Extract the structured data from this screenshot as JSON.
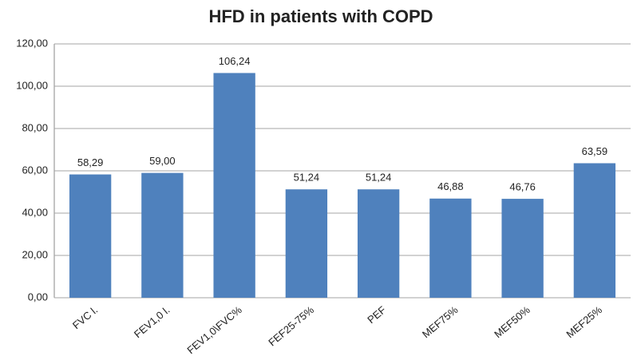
{
  "chart_data": {
    "type": "bar",
    "title": "HFD in patients with COPD",
    "categories": [
      "FVC l.",
      "FEV1,0 l.",
      "FEV1,0\\FVC%",
      "FEF25-75%",
      "PEF",
      "MEF75%",
      "MEF50%",
      "MEF25%"
    ],
    "values": [
      58.29,
      59.0,
      106.24,
      51.24,
      51.24,
      46.88,
      46.76,
      63.59
    ],
    "value_labels": [
      "58,29",
      "59,00",
      "106,24",
      "51,24",
      "51,24",
      "46,88",
      "46,76",
      "63,59"
    ],
    "color": "#4f81bd",
    "ylim": [
      0,
      120
    ],
    "yticks": [
      {
        "value": 0,
        "label": "0,00"
      },
      {
        "value": 20,
        "label": "20,00"
      },
      {
        "value": 40,
        "label": "40,00"
      },
      {
        "value": 60,
        "label": "60,00"
      },
      {
        "value": 80,
        "label": "80,00"
      },
      {
        "value": 100,
        "label": "100,00"
      },
      {
        "value": 120,
        "label": "120,00"
      }
    ],
    "grid": true
  }
}
